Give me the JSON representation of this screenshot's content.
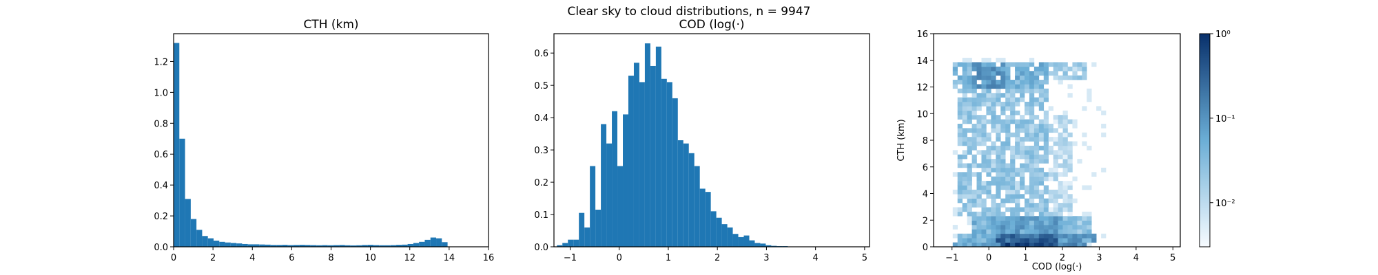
{
  "suptitle": "Clear sky to cloud distributions, n = 9947",
  "colors": {
    "bar": "#1f77b4",
    "axis": "#000000",
    "cmap_low": "#f7fbff",
    "cmap_high": "#08306b"
  },
  "chart_data": [
    {
      "type": "bar",
      "title": "CTH (km)",
      "xlabel": "",
      "ylabel": "",
      "xlim": [
        0,
        16
      ],
      "ylim": [
        0,
        1.38
      ],
      "bin_start": 0,
      "bin_width": 0.29,
      "values": [
        1.32,
        0.7,
        0.31,
        0.18,
        0.11,
        0.07,
        0.055,
        0.04,
        0.032,
        0.028,
        0.025,
        0.022,
        0.018,
        0.016,
        0.016,
        0.015,
        0.014,
        0.012,
        0.012,
        0.013,
        0.011,
        0.012,
        0.013,
        0.012,
        0.011,
        0.01,
        0.011,
        0.01,
        0.011,
        0.012,
        0.01,
        0.009,
        0.01,
        0.012,
        0.013,
        0.011,
        0.01,
        0.01,
        0.011,
        0.013,
        0.014,
        0.018,
        0.025,
        0.032,
        0.045,
        0.06,
        0.055,
        0.03
      ],
      "xticks": [
        "0",
        "2",
        "4",
        "6",
        "8",
        "10",
        "12",
        "14",
        "16"
      ],
      "yticks": [
        "0.0",
        "0.2",
        "0.4",
        "0.6",
        "0.8",
        "1.0",
        "1.2"
      ]
    },
    {
      "type": "bar",
      "title": "COD (log(·)",
      "xlabel": "",
      "ylabel": "",
      "xlim": [
        -1.33,
        5.1
      ],
      "ylim": [
        0,
        0.66
      ],
      "bin_start": -1.27,
      "bin_width": 0.112,
      "values": [
        0.005,
        0.012,
        0.022,
        0.022,
        0.105,
        0.06,
        0.25,
        0.115,
        0.38,
        0.32,
        0.42,
        0.25,
        0.41,
        0.53,
        0.57,
        0.51,
        0.63,
        0.56,
        0.62,
        0.52,
        0.51,
        0.46,
        0.33,
        0.32,
        0.29,
        0.25,
        0.18,
        0.17,
        0.11,
        0.09,
        0.07,
        0.06,
        0.04,
        0.03,
        0.035,
        0.02,
        0.012,
        0.01,
        0.005,
        0.003,
        0.002,
        0.002,
        0.001,
        0.001,
        0.001,
        0.0005
      ],
      "xticks": [
        "−1",
        "0",
        "1",
        "2",
        "3",
        "4",
        "5"
      ],
      "yticks": [
        "0.0",
        "0.1",
        "0.2",
        "0.3",
        "0.4",
        "0.5",
        "0.6"
      ]
    },
    {
      "type": "heatmap",
      "title": "",
      "xlabel": "COD (log(·)",
      "ylabel": "CTH (km)",
      "xlim": [
        -1.5,
        5.2
      ],
      "ylim": [
        0,
        16
      ],
      "bin_w": 0.13,
      "bin_h": 0.33,
      "color_scale": "log",
      "clim": [
        0.003,
        1.0
      ],
      "xticks": [
        "−1",
        "0",
        "1",
        "2",
        "3",
        "4",
        "5"
      ],
      "yticks": [
        "0",
        "2",
        "4",
        "6",
        "8",
        "10",
        "12",
        "14",
        "16"
      ],
      "colorbar_ticks": [
        "10⁻²",
        "10⁻¹",
        "10⁰"
      ],
      "colorbar_values": [
        0.01,
        0.1,
        1.0
      ],
      "regions": [
        {
          "x": [
            -1.0,
            0.3
          ],
          "y": [
            0.0,
            0.4
          ],
          "v": 0.08
        },
        {
          "x": [
            0.3,
            1.9
          ],
          "y": [
            0.0,
            0.4
          ],
          "v": 0.75
        },
        {
          "x": [
            1.9,
            2.7
          ],
          "y": [
            0.0,
            0.4
          ],
          "v": 0.15
        },
        {
          "x": [
            -0.9,
            0.2
          ],
          "y": [
            0.4,
            1.0
          ],
          "v": 0.05
        },
        {
          "x": [
            0.2,
            1.9
          ],
          "y": [
            0.4,
            1.0
          ],
          "v": 0.35
        },
        {
          "x": [
            1.9,
            2.9
          ],
          "y": [
            0.4,
            1.0
          ],
          "v": 0.09
        },
        {
          "x": [
            -0.5,
            0.3
          ],
          "y": [
            1.0,
            2.2
          ],
          "v": 0.05
        },
        {
          "x": [
            0.3,
            2.0
          ],
          "y": [
            1.0,
            2.2
          ],
          "v": 0.08
        },
        {
          "x": [
            2.0,
            2.8
          ],
          "y": [
            1.0,
            2.2
          ],
          "v": 0.03
        },
        {
          "x": [
            -0.8,
            1.6
          ],
          "y": [
            2.2,
            12.0
          ],
          "v": 0.025
        },
        {
          "x": [
            1.6,
            2.3
          ],
          "y": [
            2.2,
            10.0
          ],
          "v": 0.012
        },
        {
          "x": [
            -1.0,
            -0.5
          ],
          "y": [
            12.0,
            13.8
          ],
          "v": 0.04
        },
        {
          "x": [
            -0.5,
            0.5
          ],
          "y": [
            11.8,
            13.8
          ],
          "v": 0.1
        },
        {
          "x": [
            0.5,
            1.6
          ],
          "y": [
            11.8,
            13.8
          ],
          "v": 0.05
        },
        {
          "x": [
            1.6,
            2.7
          ],
          "y": [
            12.5,
            13.8
          ],
          "v": 0.02
        }
      ]
    }
  ]
}
